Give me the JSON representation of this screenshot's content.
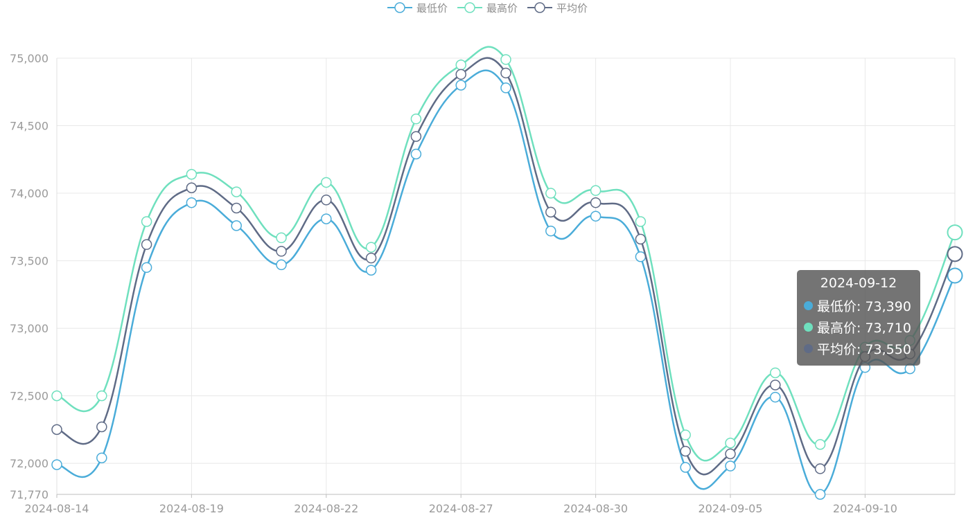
{
  "legend": [
    {
      "name": "最低价",
      "color": "#4aacd9"
    },
    {
      "name": "最高价",
      "color": "#6fe0be"
    },
    {
      "name": "平均价",
      "color": "#5f6b86"
    }
  ],
  "tooltip": {
    "title": "2024-09-12",
    "rows": [
      {
        "label": "最低价: 73,390",
        "color": "#4aacd9"
      },
      {
        "label": "最高价: 73,710",
        "color": "#6fe0be"
      },
      {
        "label": "平均价: 73,550",
        "color": "#5f6b86"
      }
    ]
  },
  "chart_data": {
    "type": "line",
    "x": [
      "2024-08-14",
      "2024-08-16",
      "2024-08-17",
      "2024-08-19",
      "2024-08-20",
      "2024-08-21",
      "2024-08-22",
      "2024-08-23",
      "2024-08-26",
      "2024-08-27",
      "2024-08-28",
      "2024-08-29",
      "2024-08-30",
      "2024-09-02",
      "2024-09-03",
      "2024-09-05",
      "2024-09-06",
      "2024-09-09",
      "2024-09-10",
      "2024-09-11",
      "2024-09-12"
    ],
    "xticks": [
      "2024-08-14",
      "2024-08-19",
      "2024-08-22",
      "2024-08-27",
      "2024-08-30",
      "2024-09-05",
      "2024-09-10"
    ],
    "yticks": [
      71770,
      72000,
      72500,
      73000,
      73500,
      74000,
      74500,
      75000
    ],
    "ytick_labels": [
      "71,770",
      "72,000",
      "72,500",
      "73,000",
      "73,500",
      "74,000",
      "74,500",
      "75,000"
    ],
    "ylim": [
      71770,
      75000
    ],
    "grid": true,
    "legend_position": "top-center",
    "highlighted_x": "2024-09-12",
    "series": [
      {
        "name": "最低价",
        "color": "#4aacd9",
        "values": [
          71990,
          72040,
          73450,
          73930,
          73760,
          73470,
          73810,
          73430,
          74290,
          74800,
          74780,
          73720,
          73830,
          73530,
          71970,
          71980,
          72490,
          71770,
          72710,
          72700,
          73390
        ]
      },
      {
        "name": "最高价",
        "color": "#6fe0be",
        "values": [
          72500,
          72500,
          73790,
          74140,
          74010,
          73670,
          74080,
          73600,
          74550,
          74950,
          74990,
          74000,
          74020,
          73790,
          72210,
          72150,
          72670,
          72140,
          72860,
          72910,
          73710
        ]
      },
      {
        "name": "平均价",
        "color": "#5f6b86",
        "values": [
          72250,
          72270,
          73620,
          74040,
          73890,
          73570,
          73950,
          73520,
          74420,
          74880,
          74890,
          73860,
          73930,
          73660,
          72090,
          72070,
          72580,
          71960,
          72790,
          72810,
          73550
        ]
      }
    ]
  }
}
